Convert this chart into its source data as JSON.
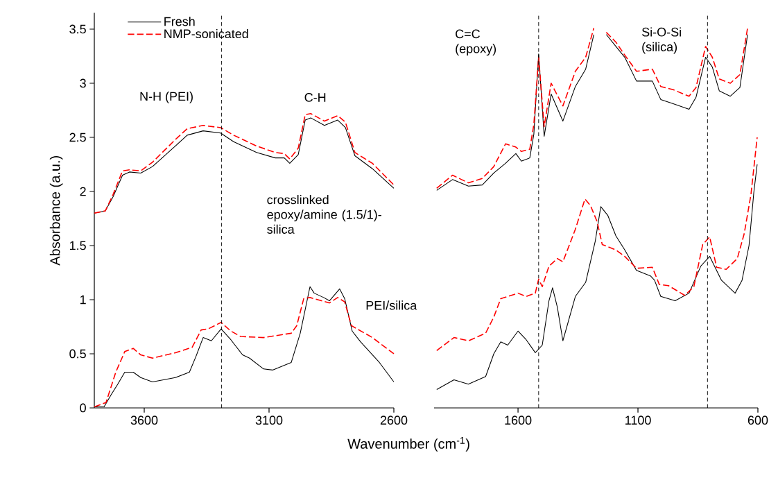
{
  "chart_data": [
    {
      "type": "line",
      "xlabel": "Wavenumber (cm$^{-1}$)",
      "ylabel": "Absorbance (a.u.)",
      "xlim": [
        3800,
        2600
      ],
      "xticks": [
        3600,
        3100,
        2600
      ],
      "ylim": [
        0,
        3.65
      ],
      "yticks": [
        0,
        0.5,
        1,
        1.5,
        2,
        2.5,
        3,
        3.5
      ],
      "legend": "top left",
      "series": [
        {
          "name": "Fresh",
          "color": "#000000",
          "line_style": "solid",
          "x": [
            3800,
            3756,
            3725,
            3687,
            3659,
            3614,
            3567,
            3475,
            3428,
            3364,
            3294,
            3242,
            3150,
            3075,
            3039,
            3017,
            2983,
            2955,
            2933,
            2878,
            2825,
            2794,
            2756,
            2686,
            2600
          ],
          "values": [
            1.8,
            1.82,
            1.95,
            2.15,
            2.18,
            2.17,
            2.23,
            2.42,
            2.52,
            2.56,
            2.54,
            2.46,
            2.36,
            2.31,
            2.31,
            2.26,
            2.34,
            2.66,
            2.68,
            2.61,
            2.66,
            2.59,
            2.33,
            2.21,
            2.03
          ]
        },
        {
          "name": "NMP-sonicated",
          "color": "#ff0000",
          "line_style": "dashed",
          "x": [
            3800,
            3756,
            3725,
            3687,
            3659,
            3614,
            3567,
            3475,
            3428,
            3364,
            3294,
            3242,
            3150,
            3075,
            3039,
            3017,
            2983,
            2955,
            2933,
            2878,
            2825,
            2794,
            2756,
            2686,
            2600
          ],
          "values": [
            1.8,
            1.82,
            1.97,
            2.19,
            2.2,
            2.19,
            2.27,
            2.48,
            2.58,
            2.61,
            2.59,
            2.52,
            2.42,
            2.36,
            2.35,
            2.3,
            2.4,
            2.71,
            2.72,
            2.65,
            2.7,
            2.64,
            2.36,
            2.26,
            2.06
          ]
        },
        {
          "color": "#000000",
          "line_style": "solid",
          "x": [
            3800,
            3761,
            3733,
            3706,
            3678,
            3644,
            3614,
            3567,
            3475,
            3419,
            3392,
            3364,
            3331,
            3292,
            3253,
            3206,
            3178,
            3122,
            3086,
            3011,
            2975,
            2936,
            2919,
            2881,
            2858,
            2817,
            2797,
            2767,
            2733,
            2658,
            2600
          ],
          "values": [
            0.01,
            0.01,
            0.12,
            0.22,
            0.33,
            0.33,
            0.28,
            0.24,
            0.28,
            0.33,
            0.48,
            0.65,
            0.62,
            0.73,
            0.63,
            0.49,
            0.46,
            0.36,
            0.35,
            0.42,
            0.69,
            1.12,
            1.06,
            1.02,
            0.99,
            1.1,
            1.01,
            0.71,
            0.61,
            0.42,
            0.24
          ]
        },
        {
          "color": "#ff0000",
          "line_style": "dashed",
          "x": [
            3800,
            3753,
            3714,
            3678,
            3644,
            3614,
            3567,
            3475,
            3408,
            3372,
            3344,
            3292,
            3253,
            3214,
            3122,
            3011,
            2989,
            2961,
            2936,
            2858,
            2825,
            2797,
            2770,
            2686,
            2600
          ],
          "values": [
            0.01,
            0.05,
            0.33,
            0.52,
            0.55,
            0.49,
            0.46,
            0.51,
            0.56,
            0.72,
            0.73,
            0.79,
            0.71,
            0.66,
            0.65,
            0.69,
            0.76,
            1.01,
            1.02,
            0.97,
            1.02,
            0.98,
            0.76,
            0.65,
            0.5
          ]
        }
      ],
      "ref_lines": [
        {
          "axis": "x",
          "value": 3290,
          "line_style": "dashed",
          "color": "#000000"
        }
      ],
      "annotations": [
        "N-H (PEI)",
        "C-H",
        "crosslinked epoxy/amine (1.5/1)-silica",
        "PEI/silica"
      ]
    },
    {
      "type": "line",
      "xlim": [
        1950,
        600
      ],
      "xticks": [
        1600,
        1100,
        600
      ],
      "ylim": [
        0,
        3.65
      ],
      "tick_labels": "x",
      "series": [
        {
          "color": "#000000",
          "line_style": "solid",
          "x": [
            1939,
            1873,
            1807,
            1749,
            1701,
            1652,
            1609,
            1586,
            1551,
            1534,
            1514,
            1491,
            1462,
            1413,
            1361,
            1318,
            1284,
            1264,
            1232,
            1192,
            1155,
            1106,
            1040,
            1005,
            953,
            887,
            858,
            818,
            790,
            761,
            715,
            675,
            643
          ],
          "values": [
            2.01,
            2.11,
            2.05,
            2.06,
            2.17,
            2.26,
            2.35,
            2.28,
            2.31,
            2.53,
            3.27,
            2.51,
            2.9,
            2.65,
            2.97,
            3.13,
            3.45,
            null,
            3.45,
            3.34,
            3.24,
            3.02,
            3.02,
            2.85,
            2.81,
            2.76,
            2.87,
            3.24,
            3.15,
            2.93,
            2.88,
            2.96,
            3.45
          ]
        },
        {
          "color": "#ff0000",
          "line_style": "dashed",
          "x": [
            1939,
            1873,
            1807,
            1749,
            1701,
            1652,
            1609,
            1586,
            1551,
            1534,
            1514,
            1491,
            1462,
            1413,
            1361,
            1318,
            1284,
            1264,
            1232,
            1192,
            1155,
            1106,
            1040,
            1005,
            953,
            887,
            858,
            818,
            790,
            761,
            715,
            675,
            643
          ],
          "values": [
            2.03,
            2.15,
            2.08,
            2.12,
            2.23,
            2.44,
            2.41,
            2.37,
            2.39,
            2.62,
            3.24,
            2.6,
            3.0,
            2.79,
            3.11,
            3.24,
            3.51,
            null,
            3.47,
            3.38,
            3.26,
            3.11,
            3.13,
            2.97,
            2.94,
            2.88,
            2.96,
            3.34,
            3.24,
            3.04,
            3.0,
            3.08,
            3.51
          ]
        },
        {
          "color": "#000000",
          "line_style": "solid",
          "x": [
            1939,
            1867,
            1807,
            1735,
            1701,
            1672,
            1643,
            1600,
            1566,
            1528,
            1499,
            1471,
            1456,
            1436,
            1413,
            1361,
            1318,
            1278,
            1255,
            1226,
            1192,
            1155,
            1106,
            1048,
            1031,
            1005,
            945,
            887,
            838,
            801,
            752,
            695,
            666,
            637,
            617,
            603
          ],
          "values": [
            0.17,
            0.26,
            0.22,
            0.29,
            0.5,
            0.61,
            0.58,
            0.71,
            0.63,
            0.51,
            0.58,
            0.99,
            1.11,
            0.93,
            0.62,
            1.03,
            1.16,
            1.54,
            1.86,
            1.78,
            1.59,
            1.46,
            1.27,
            1.22,
            1.18,
            1.03,
            0.99,
            1.06,
            1.31,
            1.4,
            1.18,
            1.06,
            1.18,
            1.5,
            1.99,
            2.25
          ]
        },
        {
          "color": "#ff0000",
          "line_style": "dashed",
          "x": [
            1939,
            1867,
            1807,
            1735,
            1701,
            1672,
            1643,
            1600,
            1566,
            1528,
            1514,
            1499,
            1471,
            1436,
            1413,
            1361,
            1321,
            1298,
            1270,
            1249,
            1192,
            1155,
            1106,
            1040,
            1011,
            973,
            905,
            867,
            830,
            801,
            772,
            732,
            686,
            657,
            629,
            603
          ],
          "values": [
            0.53,
            0.65,
            0.62,
            0.69,
            0.84,
            1.01,
            1.03,
            1.06,
            1.03,
            1.06,
            1.19,
            1.12,
            1.31,
            1.38,
            1.35,
            1.65,
            1.93,
            1.87,
            1.72,
            1.51,
            1.46,
            1.4,
            1.29,
            1.3,
            1.14,
            1.13,
            1.04,
            1.12,
            1.51,
            1.58,
            1.3,
            1.28,
            1.38,
            1.61,
            1.97,
            2.5
          ]
        }
      ],
      "ref_lines": [
        {
          "axis": "x",
          "value": 1514,
          "line_style": "dashed",
          "color": "#000000"
        },
        {
          "axis": "x",
          "value": 810,
          "line_style": "dashed",
          "color": "#000000"
        }
      ],
      "annotations": [
        "C=C (epoxy)",
        "Si-O-Si (silica)"
      ]
    }
  ]
}
